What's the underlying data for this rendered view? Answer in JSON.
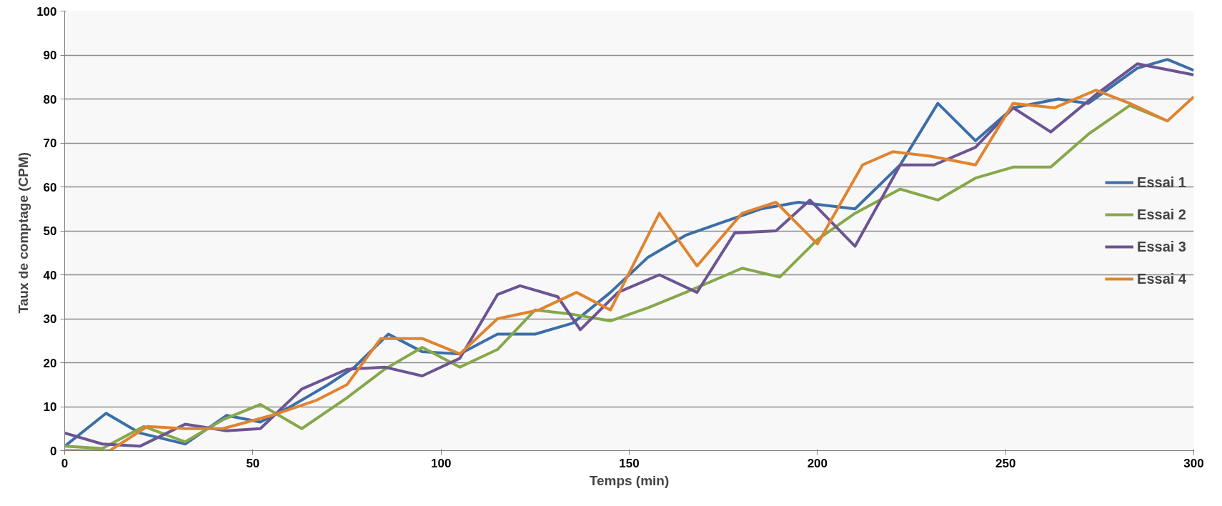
{
  "chart_data": {
    "type": "line",
    "xlabel": "Temps (min)",
    "ylabel": "Taux de comptage  (CPM)",
    "xlim": [
      0,
      300
    ],
    "xticks": [
      0,
      50,
      100,
      150,
      200,
      250,
      300
    ],
    "ylim": [
      0,
      100
    ],
    "yticks": [
      0,
      10,
      20,
      30,
      40,
      50,
      60,
      70,
      80,
      90,
      100
    ],
    "grid": "y",
    "legend": "right",
    "marker": "none",
    "line_style": "solid",
    "series": [
      {
        "name": "Essai 1",
        "color": "#3c6fa8",
        "x": [
          0,
          11,
          20,
          32,
          43,
          52,
          60,
          70,
          77,
          86,
          95,
          105,
          115,
          125,
          135,
          145,
          155,
          165,
          175,
          185,
          195,
          200,
          210,
          222,
          232,
          242,
          252,
          264,
          272,
          285,
          293,
          300
        ],
        "values": [
          1,
          8.5,
          4,
          1.5,
          8,
          6.5,
          10,
          15,
          19,
          26.5,
          22.5,
          22,
          26.5,
          26.5,
          29,
          36,
          44,
          49,
          52,
          55,
          56.5,
          56,
          55,
          65,
          79,
          70.5,
          78,
          80,
          79,
          87,
          89,
          86.5
        ]
      },
      {
        "name": "Essai 2",
        "color": "#86a84a",
        "x": [
          0,
          10,
          21,
          32,
          42,
          52,
          63,
          75,
          85,
          95,
          105,
          115,
          125,
          135,
          145,
          155,
          165,
          180,
          190,
          200,
          210,
          222,
          232,
          242,
          252,
          262,
          272,
          283,
          293
        ],
        "values": [
          1,
          0.5,
          5.5,
          2,
          7,
          10.5,
          5,
          12,
          18.5,
          23.5,
          19,
          23,
          32,
          31,
          29.5,
          32.5,
          36,
          41.5,
          39.5,
          48,
          54,
          59.5,
          57,
          62,
          64.5,
          64.5,
          72,
          78.5,
          75
        ]
      },
      {
        "name": "Essai 3",
        "color": "#6c5494",
        "x": [
          0,
          10,
          20,
          32,
          43,
          52,
          63,
          75,
          85,
          95,
          105,
          115,
          121,
          131,
          137,
          147,
          158,
          168,
          178,
          189,
          198,
          210,
          222,
          231,
          242,
          252,
          262,
          274,
          285,
          300
        ],
        "values": [
          4,
          1.5,
          1,
          6,
          4.5,
          5,
          14,
          18.5,
          19,
          17,
          21,
          35.5,
          37.5,
          35,
          27.5,
          36,
          40,
          36,
          49.5,
          50,
          57,
          46.5,
          65,
          65,
          69,
          78,
          72.5,
          81,
          88,
          85.5
        ]
      },
      {
        "name": "Essai 4",
        "color": "#e08430",
        "x": [
          0,
          12,
          22,
          32,
          42,
          55,
          67,
          75,
          84,
          95,
          105,
          115,
          126,
          136,
          145,
          158,
          168,
          180,
          189,
          200,
          212,
          220,
          230,
          242,
          252,
          263,
          274,
          283,
          293,
          300
        ],
        "values": [
          0,
          0,
          5.5,
          5,
          5,
          8,
          11.5,
          15,
          25.5,
          25.5,
          22,
          30,
          32,
          36,
          32,
          54,
          42,
          54,
          56.5,
          47,
          65,
          68,
          67,
          65,
          79,
          78,
          82,
          79,
          75,
          80.5
        ]
      }
    ]
  }
}
